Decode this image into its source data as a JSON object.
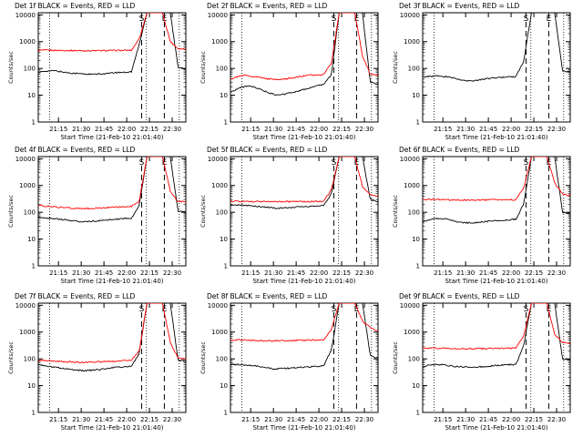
{
  "colors": {
    "events": "#000000",
    "lld": "#ff0000",
    "axis": "#000000"
  },
  "common": {
    "xlabel": "Start Time (21-Feb-10 21:01:40)",
    "ylabel": "Counts/sec",
    "x_tick_labels": [
      "21:15",
      "21:30",
      "21:45",
      "22:00",
      "22:15",
      "22:30"
    ],
    "x_range": [
      "21:01:40",
      "22:39:00"
    ],
    "y_scale": "log",
    "y_tick_labels": [
      "1",
      "10",
      "100",
      "1000",
      "10000"
    ],
    "ylim": [
      1,
      12000
    ],
    "dotted_lines": [
      "21:09:10",
      "22:13:00",
      "22:34:40"
    ],
    "dashed_lines": [
      "22:09:50",
      "22:24:50"
    ],
    "markers": [
      "S",
      "E"
    ]
  },
  "chart_data": [
    {
      "type": "line",
      "title": "Det 1f BLACK = Events, RED = LLD",
      "series": [
        {
          "name": "Events",
          "color": "#000000",
          "values": [
            70,
            80,
            82,
            75,
            68,
            65,
            62,
            60,
            62,
            65,
            70,
            72,
            75,
            800,
            12000,
            12000,
            12000,
            12000,
            110,
            100
          ]
        },
        {
          "name": "LLD",
          "color": "#ff0000",
          "values": [
            470,
            480,
            475,
            470,
            468,
            465,
            460,
            460,
            462,
            465,
            470,
            472,
            475,
            1300,
            12000,
            12000,
            12000,
            1000,
            550,
            530
          ]
        }
      ]
    },
    {
      "type": "line",
      "title": "Det 2f BLACK = Events, RED = LLD",
      "series": [
        {
          "name": "Events",
          "color": "#000000",
          "values": [
            13,
            18,
            22,
            20,
            16,
            12,
            10,
            11,
            13,
            15,
            18,
            22,
            25,
            60,
            12000,
            12000,
            12000,
            12000,
            30,
            25
          ]
        },
        {
          "name": "LLD",
          "color": "#ff0000",
          "values": [
            40,
            50,
            55,
            50,
            45,
            40,
            38,
            40,
            45,
            50,
            55,
            58,
            60,
            160,
            12000,
            12000,
            12000,
            300,
            60,
            55
          ]
        }
      ]
    },
    {
      "type": "line",
      "title": "Det 3f BLACK = Events, RED = LLD",
      "series": [
        {
          "name": "Events",
          "color": "#000000",
          "values": [
            48,
            50,
            52,
            50,
            44,
            38,
            34,
            36,
            40,
            44,
            46,
            48,
            50,
            180,
            12000,
            12000,
            12000,
            12000,
            80,
            75
          ]
        }
      ]
    },
    {
      "type": "line",
      "title": "Det 4f BLACK = Events, RED = LLD",
      "series": [
        {
          "name": "Events",
          "color": "#000000",
          "values": [
            65,
            62,
            58,
            55,
            50,
            45,
            44,
            46,
            48,
            52,
            55,
            58,
            60,
            180,
            12000,
            12000,
            12000,
            12000,
            110,
            100
          ]
        },
        {
          "name": "LLD",
          "color": "#ff0000",
          "values": [
            180,
            170,
            160,
            150,
            145,
            140,
            138,
            140,
            145,
            150,
            155,
            160,
            165,
            260,
            12000,
            12000,
            12000,
            600,
            260,
            240
          ]
        }
      ]
    },
    {
      "type": "line",
      "title": "Det 5f BLACK = Events, RED = LLD",
      "series": [
        {
          "name": "Events",
          "color": "#000000",
          "values": [
            180,
            190,
            180,
            170,
            160,
            150,
            140,
            145,
            150,
            160,
            165,
            170,
            175,
            500,
            12000,
            12000,
            12000,
            12000,
            300,
            250
          ]
        },
        {
          "name": "LLD",
          "color": "#ff0000",
          "values": [
            260,
            260,
            255,
            250,
            250,
            248,
            248,
            250,
            250,
            250,
            252,
            255,
            255,
            700,
            12000,
            12000,
            12000,
            900,
            450,
            400
          ]
        }
      ]
    },
    {
      "type": "line",
      "title": "Det 6f BLACK = Events, RED = LLD",
      "series": [
        {
          "name": "Events",
          "color": "#000000",
          "values": [
            45,
            52,
            60,
            55,
            48,
            42,
            40,
            42,
            45,
            48,
            50,
            52,
            55,
            200,
            12000,
            12000,
            12000,
            12000,
            100,
            90
          ]
        },
        {
          "name": "LLD",
          "color": "#ff0000",
          "values": [
            300,
            305,
            300,
            295,
            290,
            288,
            285,
            285,
            288,
            290,
            292,
            295,
            300,
            800,
            12000,
            12000,
            12000,
            1200,
            480,
            420
          ]
        }
      ]
    },
    {
      "type": "line",
      "title": "Det 7f BLACK = Events, RED = LLD",
      "series": [
        {
          "name": "Events",
          "color": "#000000",
          "values": [
            60,
            55,
            50,
            45,
            40,
            38,
            36,
            38,
            40,
            45,
            48,
            50,
            52,
            160,
            12000,
            12000,
            12000,
            12000,
            90,
            80
          ]
        },
        {
          "name": "LLD",
          "color": "#ff0000",
          "values": [
            90,
            85,
            82,
            80,
            78,
            75,
            74,
            75,
            78,
            80,
            82,
            85,
            88,
            200,
            12000,
            12000,
            12000,
            400,
            110,
            100
          ]
        }
      ]
    },
    {
      "type": "line",
      "title": "Det 8f BLACK = Events, RED = LLD",
      "series": [
        {
          "name": "Events",
          "color": "#000000",
          "values": [
            60,
            62,
            58,
            55,
            50,
            45,
            42,
            44,
            46,
            48,
            50,
            52,
            55,
            220,
            12000,
            12000,
            12000,
            12000,
            130,
            110
          ]
        },
        {
          "name": "LLD",
          "color": "#ff0000",
          "values": [
            500,
            510,
            500,
            490,
            480,
            475,
            470,
            475,
            480,
            490,
            495,
            500,
            505,
            1300,
            12000,
            12000,
            12000,
            2500,
            1500,
            1100
          ]
        }
      ]
    },
    {
      "type": "line",
      "title": "Det 9f BLACK = Events, RED = LLD",
      "series": [
        {
          "name": "Events",
          "color": "#000000",
          "values": [
            50,
            60,
            62,
            58,
            52,
            50,
            48,
            50,
            52,
            55,
            58,
            60,
            62,
            300,
            12000,
            12000,
            12000,
            12000,
            100,
            90
          ]
        },
        {
          "name": "LLD",
          "color": "#ff0000",
          "values": [
            250,
            255,
            250,
            245,
            240,
            238,
            238,
            240,
            242,
            245,
            248,
            250,
            255,
            700,
            12000,
            12000,
            12000,
            800,
            420,
            380
          ]
        }
      ]
    }
  ]
}
